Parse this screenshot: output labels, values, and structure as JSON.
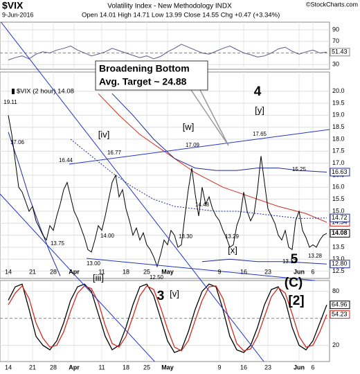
{
  "header": {
    "symbol": "$VIX",
    "name": "Volatility Index - New Methodology INDX",
    "date": "9-Jun-2016",
    "quote": "Open 14.01 High 14.71 Low 13.99 Close 14.55 Chg +0.47 (+3.34%)",
    "credit": "©StockCharts.com"
  },
  "chart_data": [
    {
      "type": "line",
      "color": "#5a5a8c",
      "ylim": [
        22,
        103
      ],
      "yticks": [
        30,
        70,
        90
      ],
      "midline": 50,
      "last_label": "51.43",
      "values": [
        38,
        42,
        45,
        40,
        48,
        52,
        50,
        55,
        58,
        62,
        55,
        50,
        45,
        48,
        52,
        58,
        54,
        50,
        46,
        42,
        45,
        40,
        44,
        52,
        58,
        65,
        60,
        55,
        50,
        48,
        53,
        58,
        62,
        56,
        50,
        47,
        43,
        45,
        50,
        57,
        60,
        53,
        48,
        52,
        55,
        50,
        51.43
      ]
    },
    {
      "type": "line",
      "categories": [
        "14",
        null,
        null,
        null,
        null,
        null,
        null,
        "21",
        null,
        null,
        null,
        null,
        null,
        "28",
        null,
        null,
        null,
        null,
        null,
        "Apr",
        null,
        null,
        null,
        null,
        null,
        null,
        null,
        "11",
        null,
        null,
        null,
        null,
        null,
        null,
        "18",
        null,
        null,
        null,
        null,
        null,
        "25",
        null,
        null,
        null,
        null,
        null,
        "May",
        null,
        null,
        null,
        null,
        null,
        null,
        null,
        null,
        null,
        null,
        null,
        null,
        null,
        null,
        "9",
        null,
        null,
        null,
        null,
        null,
        null,
        "16",
        null,
        null,
        null,
        null,
        null,
        null,
        "23",
        null,
        null,
        null,
        null,
        null,
        null,
        null,
        null,
        "Jun",
        null,
        null,
        null,
        "6",
        null,
        null,
        null,
        null
      ],
      "series": [
        {
          "name": "$VIX (2 hour) 14.08",
          "color": "#000000",
          "last_label": "14.08",
          "values": [
            19.0,
            18.2,
            17.1,
            16.0,
            15.8,
            15.4,
            15.0,
            15.2,
            14.6,
            14.3,
            14.0,
            13.8,
            14.4,
            14.2,
            14.8,
            15.3,
            15.9,
            16.2,
            15.6,
            15.0,
            14.7,
            14.3,
            13.9,
            13.4,
            13.3,
            13.8,
            14.4,
            14.2,
            14.8,
            15.5,
            16.2,
            16.5,
            15.6,
            15.9,
            15.1,
            14.6,
            14.0,
            14.3,
            13.8,
            14.1,
            13.6,
            13.4,
            13.1,
            12.7,
            13.2,
            13.8,
            13.6,
            14.2,
            14.0,
            13.5,
            13.6,
            14.8,
            15.9,
            16.8,
            15.7,
            14.8,
            16.0,
            15.3,
            15.6,
            15.1,
            14.8,
            14.6,
            14.2,
            13.9,
            13.5,
            13.6,
            14.4,
            14.8,
            15.8,
            15.0,
            14.6,
            14.9,
            15.9,
            17.3,
            16.2,
            15.1,
            14.8,
            14.5,
            14.0,
            13.8,
            14.2,
            13.5,
            13.4,
            14.6,
            15.0,
            14.2,
            13.9,
            13.5,
            13.6,
            13.5,
            13.8,
            14.0,
            14.08
          ]
        }
      ],
      "overlays": [
        {
          "color": "#d42a1f",
          "dashed": false,
          "last_label": "14.54",
          "x": [
            26,
            32,
            38,
            46,
            54,
            62,
            70,
            78,
            86,
            92
          ],
          "values": [
            19.9,
            19.0,
            18.2,
            17.4,
            16.6,
            16.0,
            15.6,
            15.2,
            14.9,
            14.54
          ]
        },
        {
          "color": "#1f2a9c",
          "dashed": false,
          "last_label": "16.63",
          "x": [
            30,
            36,
            42,
            48,
            54,
            60,
            66,
            72,
            78,
            84,
            92
          ],
          "values": [
            19.9,
            19.0,
            18.0,
            17.2,
            16.8,
            16.7,
            16.7,
            16.8,
            16.8,
            16.7,
            16.63
          ]
        },
        {
          "color": "#1f2a9c",
          "dashed": false,
          "last_label": "12.80",
          "x": [
            0,
            3,
            6,
            9,
            12,
            15,
            40,
            56,
            64,
            72,
            80,
            86,
            92
          ],
          "values": [
            18.3,
            17.0,
            15.6,
            14.4,
            13.3,
            12.3,
            null,
            12.9,
            13.0,
            12.9,
            12.9,
            12.85,
            12.8
          ]
        },
        {
          "color": "#1f2a9c",
          "dashed": true,
          "last_label": "14.72",
          "x": [
            18,
            24,
            30,
            36,
            42,
            48,
            54,
            60,
            66,
            72,
            78,
            84,
            92
          ],
          "values": [
            18.0,
            17.3,
            16.6,
            16.0,
            15.5,
            15.2,
            15.1,
            15.0,
            15.0,
            14.9,
            14.8,
            14.7,
            14.72
          ]
        }
      ],
      "ylim": [
        12.2,
        20.8
      ],
      "yticks": [
        {
          "value": 12.5,
          "label": "12.5"
        },
        {
          "value": 13,
          "label": "13.0"
        },
        13.5,
        {
          "value": 14,
          "label": "14.0"
        },
        14.5,
        {
          "value": 15,
          "label": "15.0"
        },
        15.5,
        {
          "value": 16,
          "label": "16.0"
        },
        16.5,
        {
          "value": 17,
          "label": "17.0"
        },
        17.5,
        {
          "value": 18,
          "label": "18.0"
        },
        18.5,
        {
          "value": 19,
          "label": "19.0"
        },
        19.5,
        {
          "value": 20,
          "label": "20.0"
        }
      ],
      "note": [
        "Broadening Bottom",
        "Avg. Target ~ 24.88"
      ],
      "annotations": [
        {
          "text": "19.11",
          "color": "#000000"
        },
        {
          "text": "17.06",
          "color": "#000000"
        },
        {
          "text": "16.44",
          "color": "#000000"
        },
        {
          "text": "13.75",
          "color": "#000000"
        },
        {
          "text": "16.77",
          "color": "#000000"
        },
        {
          "text": "13.00",
          "color": "#000000"
        },
        {
          "text": "14.00",
          "color": "#000000"
        },
        {
          "text": "12.50",
          "color": "#000000"
        },
        {
          "text": "17.09",
          "color": "#000000"
        },
        {
          "text": "13.30",
          "color": "#000000"
        },
        {
          "text": "14.48",
          "color": "#000000"
        },
        {
          "text": "13.29",
          "color": "#000000"
        },
        {
          "text": "17.65",
          "color": "#000000"
        },
        {
          "text": "15.25",
          "color": "#000000"
        },
        {
          "text": "13.12",
          "color": "#000000"
        },
        {
          "text": "13.28",
          "color": "#000000"
        },
        {
          "text": "[iv]",
          "color": "#c40000"
        },
        {
          "text": "[w]",
          "color": "#c40000"
        },
        {
          "text": "[y]",
          "color": "#c40000"
        },
        {
          "text": "4",
          "color": "#9a1ad0"
        },
        {
          "text": "[iii]",
          "color": "#c40000"
        },
        {
          "text": "[v]",
          "color": "#c40000"
        },
        {
          "text": "3",
          "color": "#9a1ad0"
        },
        {
          "text": "[x]",
          "color": "#c40000"
        },
        {
          "text": "5",
          "color": "#9a1ad0"
        },
        {
          "text": "(C)",
          "color": "#000000"
        },
        {
          "text": "[2]",
          "color": "#1a1aff"
        }
      ]
    },
    {
      "type": "line",
      "ylim": [
        2,
        92
      ],
      "yticks": [
        20,
        80
      ],
      "midline": 50,
      "series": [
        {
          "color": "#000000",
          "last_label": "64.96",
          "values": [
            70,
            85,
            88,
            60,
            30,
            20,
            15,
            25,
            45,
            70,
            85,
            88,
            80,
            55,
            30,
            15,
            20,
            40,
            65,
            85,
            88,
            75,
            50,
            25,
            12,
            15,
            35,
            60,
            80,
            88,
            85,
            60,
            30,
            15,
            12,
            20,
            40,
            65,
            82,
            85,
            70,
            40,
            20,
            15,
            25,
            45,
            64.96
          ]
        },
        {
          "color": "#d42a1f",
          "last_label": "54.23",
          "values": [
            65,
            78,
            86,
            72,
            45,
            28,
            18,
            20,
            35,
            58,
            78,
            86,
            83,
            68,
            42,
            22,
            18,
            30,
            52,
            75,
            86,
            82,
            62,
            38,
            18,
            14,
            25,
            48,
            70,
            85,
            86,
            72,
            45,
            22,
            14,
            16,
            30,
            52,
            74,
            84,
            78,
            55,
            30,
            18,
            20,
            35,
            54.23
          ]
        }
      ]
    }
  ]
}
